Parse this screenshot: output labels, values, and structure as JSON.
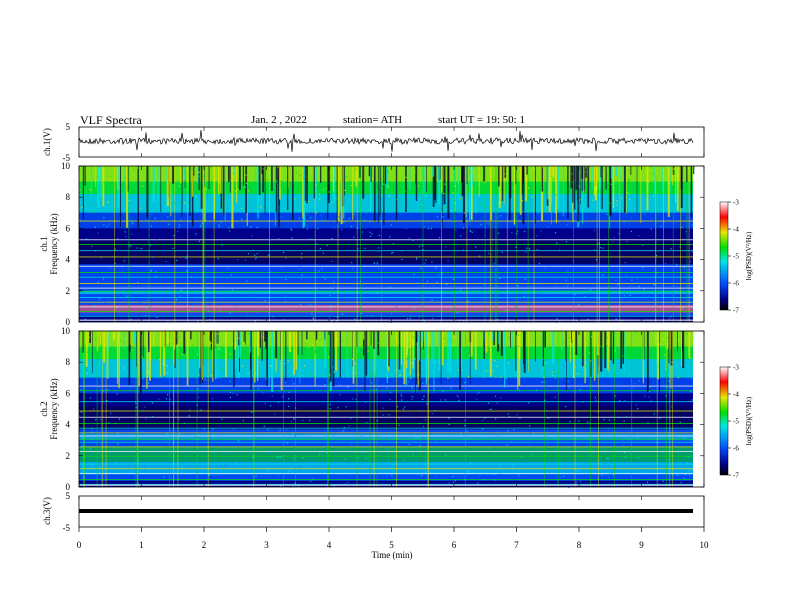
{
  "header": {
    "title": "VLF  Spectra",
    "date": "Jan. 2  , 2022",
    "station": "station= ATH",
    "start": "start  UT  =    19: 50: 1"
  },
  "colors": {
    "spectrogram_low": "#00008a",
    "spectrogram_mid": "#0050ff",
    "spectrogram_cyan": "#00e6e6",
    "spectrogram_green": "#00e000",
    "spectrogram_yellow": "#e8e800",
    "spectrogram_red": "#ff0000",
    "spectrogram_white": "#ffffff"
  },
  "chart_data": [
    {
      "type": "line",
      "panel": "ch1",
      "ylabel": "ch.1(V)",
      "ylim": [
        -5,
        5
      ],
      "yticks": [
        "5",
        "-5"
      ],
      "xlim": [
        0,
        10
      ],
      "description_values": {
        "baseline_v": 0,
        "amplitude_range_v": [
          -1.5,
          1.5
        ]
      }
    },
    {
      "type": "heatmap",
      "panel": "ch1-spectrogram",
      "ylabel": "ch.1\nFrequency  (kHz)",
      "ylim": [
        0,
        10
      ],
      "yticks": [
        "0",
        "2",
        "4",
        "6",
        "8",
        "10"
      ],
      "xlim": [
        0,
        9.8
      ],
      "colorbar": {
        "label": "log(PSD)(V²/Hz)",
        "ticks": [
          "-3",
          "-4",
          "-5",
          "-6",
          "-7"
        ],
        "range": [
          -7,
          -3
        ]
      }
    },
    {
      "type": "heatmap",
      "panel": "ch2-spectrogram",
      "ylabel": "ch.2\nFrequency  (kHz)",
      "ylim": [
        0,
        10
      ],
      "yticks": [
        "0",
        "2",
        "4",
        "6",
        "8",
        "10"
      ],
      "xlim": [
        0,
        9.8
      ],
      "colorbar": {
        "label": "log(PSD)(V²/Hz)",
        "ticks": [
          "-3",
          "-4",
          "-5",
          "-6",
          "-7"
        ],
        "range": [
          -7,
          -3
        ]
      }
    },
    {
      "type": "line",
      "panel": "ch3",
      "ylabel": "ch.3(V)",
      "ylim": [
        -5,
        5
      ],
      "yticks": [
        "5",
        "-5"
      ],
      "xlim": [
        0,
        10
      ],
      "description_values": {
        "baseline_v": 0
      }
    }
  ],
  "xaxis": {
    "label": "Time  (min)",
    "ticks": [
      "0",
      "1",
      "2",
      "3",
      "4",
      "5",
      "6",
      "7",
      "8",
      "9",
      "10"
    ]
  },
  "axis_labels": {
    "ch1_line": "ch.1(V)",
    "ch1_spec_a": "ch.1",
    "ch1_spec_b": "Frequency  (kHz)",
    "ch2_spec_a": "ch.2",
    "ch2_spec_b": "Frequency  (kHz)",
    "ch3_line": "ch.3(V)"
  },
  "colorbar_label": "log(PSD)(V²/Hz)",
  "yticks_line": {
    "top": "5",
    "bottom": "-5"
  },
  "yticks_spec": [
    "0",
    "2",
    "4",
    "6",
    "8",
    "10"
  ],
  "cb_ticks": [
    "-3",
    "-4",
    "-5",
    "-6",
    "-7"
  ]
}
